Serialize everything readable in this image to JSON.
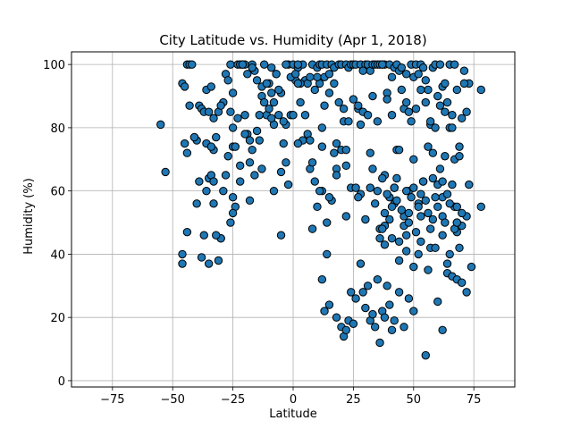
{
  "chart_data": {
    "type": "scatter",
    "title": "City Latitude vs. Humidity (Apr 1, 2018)",
    "xlabel": "Latitude",
    "ylabel": "Humidity (%)",
    "xlim": [
      -92,
      92
    ],
    "ylim": [
      -2,
      104
    ],
    "xticks": [
      -75,
      -50,
      -25,
      0,
      25,
      50,
      75
    ],
    "yticks": [
      0,
      20,
      40,
      60,
      80,
      100
    ],
    "grid": true,
    "marker_fill": "#1f77b4",
    "marker_edge": "#000000",
    "x": [
      -55,
      -53,
      -46,
      -46,
      -45,
      -44,
      -43,
      -42,
      -41,
      -40,
      -39,
      -38,
      -37,
      -36,
      -35,
      -34,
      -33,
      -32,
      -31,
      -30,
      -29,
      -28,
      -27,
      -26,
      -25,
      -24,
      -23,
      -22,
      -21,
      -20,
      -19,
      -18,
      -17,
      -16,
      -15,
      -14,
      -13,
      -12,
      -11,
      -10,
      -9,
      -8,
      -7,
      -6,
      -5,
      -4,
      -3,
      -2,
      -1,
      0,
      1,
      2,
      3,
      4,
      5,
      6,
      7,
      8,
      9,
      10,
      11,
      12,
      13,
      14,
      15,
      16,
      17,
      18,
      19,
      20,
      21,
      22,
      23,
      24,
      25,
      26,
      27,
      28,
      29,
      30,
      31,
      32,
      33,
      34,
      35,
      36,
      37,
      38,
      39,
      40,
      41,
      42,
      43,
      44,
      45,
      46,
      47,
      48,
      49,
      50,
      51,
      52,
      53,
      54,
      55,
      56,
      57,
      58,
      59,
      60,
      61,
      62,
      63,
      64,
      65,
      66,
      67,
      68,
      69,
      70,
      71,
      72,
      73,
      78,
      -45,
      -43,
      -41,
      -39,
      -37,
      -35,
      -33,
      -31,
      -29,
      -27,
      -25,
      -23,
      -21,
      -19,
      -17,
      -15,
      -13,
      -11,
      -9,
      -7,
      -5,
      -3,
      -1,
      1,
      3,
      5,
      7,
      9,
      11,
      13,
      15,
      17,
      19,
      21,
      23,
      25,
      27,
      29,
      31,
      33,
      35,
      37,
      39,
      41,
      43,
      45,
      47,
      49,
      51,
      53,
      55,
      57,
      59,
      61,
      63,
      65,
      67,
      69,
      71,
      -44,
      -40,
      -36,
      -34,
      -30,
      -26,
      -24,
      -22,
      -20,
      -18,
      -16,
      -14,
      -12,
      -10,
      -8,
      -6,
      -4,
      -2,
      0,
      2,
      4,
      6,
      8,
      10,
      12,
      14,
      16,
      18,
      20,
      22,
      24,
      26,
      28,
      30,
      32,
      34,
      36,
      38,
      40,
      42,
      44,
      46,
      48,
      50,
      52,
      54,
      56,
      58,
      60,
      62,
      64,
      66,
      68,
      70,
      -36,
      -33,
      -28,
      -25,
      -22,
      -18,
      -13,
      -8,
      -3,
      2,
      7,
      12,
      17,
      22,
      27,
      32,
      37,
      42,
      47,
      52,
      57,
      62,
      67,
      72,
      -44,
      -34,
      -25,
      10,
      11,
      12,
      13,
      14,
      15,
      18,
      20,
      21,
      22,
      23,
      24,
      25,
      26,
      28,
      29,
      30,
      31,
      32,
      33,
      34,
      35,
      36,
      37,
      38,
      39,
      40,
      41,
      42,
      44,
      46,
      48,
      50,
      55,
      60,
      62,
      64,
      66,
      68,
      70,
      72,
      74,
      -46,
      -30,
      -26,
      -38,
      -35,
      -33,
      -32,
      -25,
      -20,
      -17,
      -9,
      -5,
      2,
      8,
      12,
      15,
      18,
      22,
      28,
      33,
      38,
      43,
      48,
      53,
      58,
      63,
      68,
      73,
      78,
      36,
      37,
      38,
      39,
      40,
      41,
      42,
      43,
      44,
      45,
      46,
      47,
      48,
      49,
      50,
      51,
      52,
      53,
      54,
      55,
      56,
      57,
      58,
      59,
      60,
      61,
      62,
      63,
      64,
      65,
      66,
      67,
      68,
      69,
      70,
      35,
      38,
      41,
      44,
      47,
      50,
      53,
      56,
      59,
      62,
      65,
      68
    ],
    "y": [
      81,
      66,
      94,
      37,
      93,
      100,
      100,
      100,
      77,
      76,
      87,
      86,
      46,
      92,
      64,
      93,
      73,
      77,
      38,
      45,
      60,
      97,
      71,
      100,
      91,
      55,
      100,
      100,
      100,
      100,
      78,
      76,
      100,
      98,
      79,
      76,
      90,
      100,
      84,
      94,
      99,
      88,
      97,
      84,
      91,
      75,
      81,
      100,
      84,
      100,
      95,
      99,
      88,
      100,
      95,
      94,
      67,
      100,
      63,
      99,
      100,
      100,
      96,
      100,
      97,
      100,
      99,
      75,
      100,
      100,
      86,
      100,
      99,
      100,
      100,
      100,
      86,
      100,
      85,
      100,
      100,
      98,
      100,
      100,
      100,
      100,
      100,
      100,
      91,
      100,
      96,
      99,
      100,
      98,
      99,
      86,
      97,
      85,
      100,
      96,
      100,
      97,
      100,
      99,
      95,
      92,
      81,
      99,
      100,
      90,
      100,
      93,
      94,
      88,
      100,
      84,
      100,
      92,
      74,
      83,
      98,
      85,
      94,
      92,
      75,
      87,
      77,
      63,
      85,
      85,
      83,
      85,
      88,
      95,
      74,
      83,
      100,
      97,
      99,
      95,
      93,
      94,
      91,
      97,
      66,
      100,
      96,
      97,
      94,
      84,
      96,
      92,
      94,
      87,
      91,
      94,
      88,
      82,
      82,
      89,
      87,
      98,
      84,
      90,
      82,
      100,
      89,
      84,
      73,
      92,
      88,
      82,
      86,
      92,
      88,
      82,
      80,
      87,
      85,
      80,
      70,
      71,
      94,
      72,
      56,
      75,
      65,
      87,
      85,
      74,
      68,
      78,
      69,
      65,
      84,
      88,
      86,
      81,
      92,
      82,
      62,
      84,
      94,
      76,
      78,
      69,
      96,
      80,
      50,
      57,
      67,
      73,
      68,
      61,
      61,
      59,
      51,
      61,
      56,
      48,
      65,
      58,
      61,
      73,
      52,
      60,
      70,
      56,
      63,
      74,
      72,
      62,
      58,
      37,
      80,
      47,
      49,
      60,
      56,
      65,
      80,
      63,
      57,
      67,
      60,
      69,
      75,
      76,
      60,
      72,
      73,
      58,
      72,
      64,
      56,
      46,
      40,
      42,
      63,
      55,
      52,
      47,
      74,
      58,
      55,
      60,
      32,
      22,
      40,
      24,
      20,
      17,
      14,
      16,
      19,
      28,
      18,
      26,
      37,
      28,
      23,
      30,
      19,
      21,
      17,
      32,
      12,
      22,
      20,
      30,
      24,
      16,
      19,
      28,
      17,
      26,
      22,
      8,
      25,
      16,
      34,
      33,
      32,
      31,
      28,
      36,
      40,
      45,
      50,
      39,
      37,
      63,
      46,
      53,
      84,
      73,
      83,
      46,
      100,
      48,
      74,
      58,
      65,
      52,
      81,
      67,
      49,
      64,
      53,
      59,
      51,
      71,
      50,
      62,
      55,
      45,
      48,
      53,
      59,
      51,
      55,
      61,
      57,
      44,
      54,
      49,
      60,
      50,
      58,
      61,
      47,
      55,
      52,
      63,
      57,
      53,
      48,
      64,
      58,
      55,
      67,
      52,
      50,
      59,
      56,
      62,
      48,
      55,
      42,
      53,
      60,
      43,
      45,
      38,
      41,
      36,
      44,
      35,
      42,
      46,
      40,
      50
    ]
  }
}
